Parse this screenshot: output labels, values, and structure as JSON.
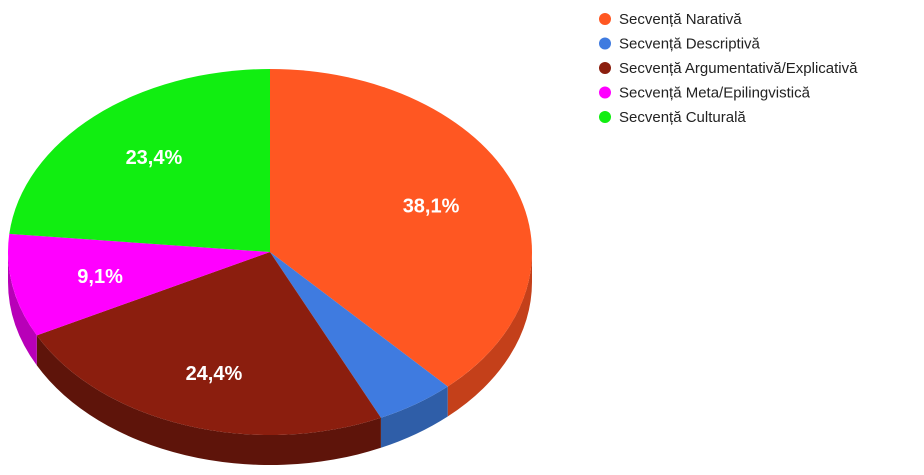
{
  "chart_data": {
    "type": "pie",
    "title": "",
    "labels": [
      "Secvență Narativă",
      "Secvență Descriptivă",
      "Secvență Argumentativă/Explicativă",
      "Secvență Meta/Epilingvistică",
      "Secvență Culturală"
    ],
    "values": [
      38.1,
      4.9,
      24.4,
      9.1,
      23.4
    ],
    "value_labels": [
      "38,1%",
      "",
      "24,4%",
      "9,1%",
      "23,4%"
    ],
    "colors": [
      "#ff5722",
      "#3f7be0",
      "#8b1e0e",
      "#ff00ff",
      "#11ee11"
    ],
    "side_colors": [
      "#c4401a",
      "#2f5ea8",
      "#5e140a",
      "#b800b8",
      "#0db30d"
    ],
    "legend_position": "top-right",
    "style": "3d"
  }
}
